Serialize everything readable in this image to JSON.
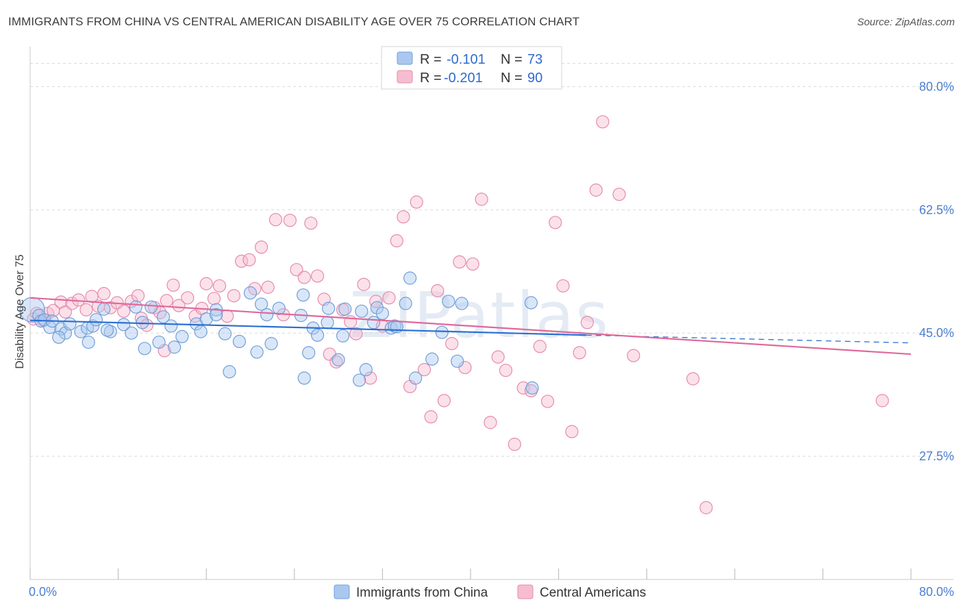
{
  "title": "IMMIGRANTS FROM CHINA VS CENTRAL AMERICAN DISABILITY AGE OVER 75 CORRELATION CHART",
  "source": "Source: ZipAtlas.com",
  "watermark": "ZIPatlas",
  "colors": {
    "china_fill": "#aac8ef",
    "china_stroke": "#6f9fd8",
    "china_line": "#2a6fd1",
    "central_fill": "#f6bdd0",
    "central_stroke": "#e68bab",
    "central_line": "#e0689a",
    "tick_label": "#4a7fcf",
    "grid": "#d9d9d9"
  },
  "legend": {
    "rows": [
      {
        "r_label": "R =",
        "r_value": "-0.101",
        "n_label": "N =",
        "n_value": "73"
      },
      {
        "r_label": "R =",
        "r_value": "-0.201",
        "n_label": "N =",
        "n_value": "90"
      }
    ]
  },
  "chart_data": {
    "type": "scatter",
    "xlabel": "",
    "ylabel": "Disability Age Over 75",
    "xlim": [
      0,
      80
    ],
    "ylim": [
      10,
      85
    ],
    "x_tick_labels": [
      "0.0%",
      "80.0%"
    ],
    "y_ticks": [
      27.5,
      45.0,
      62.5,
      80.0
    ],
    "y_tick_labels": [
      "27.5%",
      "45.0%",
      "62.5%",
      "80.0%"
    ],
    "grid": "horizontal dashed",
    "series": [
      {
        "name": "Immigrants from China",
        "trend": {
          "x": [
            0,
            50.5
          ],
          "y": [
            46.8,
            44.7
          ],
          "dashed_to": [
            80,
            43.6
          ]
        },
        "points": [
          [
            0.2,
            48.3
          ],
          [
            0.8,
            47.5
          ],
          [
            1.0,
            46.7
          ],
          [
            1.3,
            46.9
          ],
          [
            1.8,
            45.8
          ],
          [
            2.0,
            46.7
          ],
          [
            2.8,
            45.6
          ],
          [
            3.2,
            45.0
          ],
          [
            3.6,
            46.3
          ],
          [
            4.6,
            45.2
          ],
          [
            5.2,
            45.7
          ],
          [
            5.7,
            46.0
          ],
          [
            6.0,
            46.9
          ],
          [
            7.3,
            45.2
          ],
          [
            5.3,
            43.7
          ],
          [
            2.6,
            44.4
          ],
          [
            6.7,
            48.4
          ],
          [
            7.0,
            45.4
          ],
          [
            8.5,
            46.2
          ],
          [
            9.6,
            48.7
          ],
          [
            9.2,
            45.0
          ],
          [
            10.2,
            46.5
          ],
          [
            11.0,
            48.7
          ],
          [
            12.1,
            47.3
          ],
          [
            10.4,
            42.8
          ],
          [
            11.7,
            43.7
          ],
          [
            12.8,
            46.0
          ],
          [
            13.1,
            43.0
          ],
          [
            13.8,
            44.5
          ],
          [
            15.1,
            46.3
          ],
          [
            15.5,
            45.2
          ],
          [
            16.0,
            47.0
          ],
          [
            16.9,
            48.3
          ],
          [
            16.9,
            47.6
          ],
          [
            17.7,
            44.9
          ],
          [
            18.1,
            39.5
          ],
          [
            19.0,
            43.8
          ],
          [
            20.0,
            50.7
          ],
          [
            20.6,
            42.3
          ],
          [
            21.0,
            49.1
          ],
          [
            21.5,
            47.6
          ],
          [
            21.9,
            43.5
          ],
          [
            22.6,
            48.5
          ],
          [
            24.6,
            47.5
          ],
          [
            24.8,
            50.4
          ],
          [
            25.3,
            42.2
          ],
          [
            24.9,
            38.6
          ],
          [
            25.7,
            45.7
          ],
          [
            26.1,
            44.7
          ],
          [
            27.1,
            48.5
          ],
          [
            27.0,
            46.5
          ],
          [
            28.0,
            41.2
          ],
          [
            28.4,
            44.6
          ],
          [
            28.6,
            48.4
          ],
          [
            30.1,
            48.1
          ],
          [
            30.5,
            39.8
          ],
          [
            31.5,
            48.6
          ],
          [
            32.0,
            47.8
          ],
          [
            31.2,
            46.5
          ],
          [
            32.8,
            45.7
          ],
          [
            33.1,
            46.0
          ],
          [
            33.3,
            45.9
          ],
          [
            34.1,
            49.2
          ],
          [
            34.5,
            52.8
          ],
          [
            35.0,
            38.6
          ],
          [
            36.5,
            41.3
          ],
          [
            37.4,
            45.1
          ],
          [
            38.0,
            49.5
          ],
          [
            38.8,
            41.0
          ],
          [
            39.2,
            49.2
          ],
          [
            29.9,
            38.3
          ],
          [
            45.6,
            37.2
          ],
          [
            45.5,
            49.3
          ]
        ]
      },
      {
        "name": "Central Americans",
        "trend": {
          "x": [
            0,
            80
          ],
          "y": [
            50.0,
            42.0
          ]
        },
        "points": [
          [
            0.3,
            47.0
          ],
          [
            0.6,
            47.8
          ],
          [
            1.2,
            46.8
          ],
          [
            1.6,
            47.8
          ],
          [
            2.1,
            48.2
          ],
          [
            2.8,
            49.4
          ],
          [
            3.2,
            48.0
          ],
          [
            3.8,
            49.2
          ],
          [
            4.4,
            49.7
          ],
          [
            5.1,
            48.3
          ],
          [
            5.6,
            50.2
          ],
          [
            6.2,
            48.8
          ],
          [
            6.7,
            50.6
          ],
          [
            7.3,
            48.6
          ],
          [
            7.9,
            49.3
          ],
          [
            8.5,
            48.1
          ],
          [
            9.2,
            49.5
          ],
          [
            9.8,
            50.3
          ],
          [
            10.1,
            47.1
          ],
          [
            10.6,
            46.1
          ],
          [
            11.3,
            48.6
          ],
          [
            11.8,
            47.9
          ],
          [
            12.4,
            49.6
          ],
          [
            13.0,
            51.8
          ],
          [
            13.5,
            48.9
          ],
          [
            14.3,
            50.0
          ],
          [
            15.0,
            47.4
          ],
          [
            15.6,
            48.5
          ],
          [
            16.0,
            52.0
          ],
          [
            16.7,
            49.9
          ],
          [
            17.2,
            51.7
          ],
          [
            17.9,
            47.4
          ],
          [
            18.5,
            50.3
          ],
          [
            19.2,
            55.2
          ],
          [
            19.9,
            55.4
          ],
          [
            20.4,
            51.3
          ],
          [
            21.0,
            57.2
          ],
          [
            21.6,
            51.5
          ],
          [
            22.3,
            61.1
          ],
          [
            23.0,
            47.6
          ],
          [
            23.6,
            61.0
          ],
          [
            24.2,
            54.0
          ],
          [
            24.9,
            52.9
          ],
          [
            25.5,
            60.6
          ],
          [
            26.1,
            53.1
          ],
          [
            26.7,
            49.8
          ],
          [
            27.2,
            42.0
          ],
          [
            27.8,
            40.9
          ],
          [
            28.4,
            48.3
          ],
          [
            29.1,
            46.6
          ],
          [
            29.6,
            44.9
          ],
          [
            30.3,
            51.9
          ],
          [
            30.9,
            38.6
          ],
          [
            31.4,
            49.5
          ],
          [
            32.0,
            46.0
          ],
          [
            32.6,
            50.0
          ],
          [
            33.3,
            58.1
          ],
          [
            33.9,
            61.5
          ],
          [
            34.5,
            37.4
          ],
          [
            35.1,
            63.6
          ],
          [
            35.8,
            39.8
          ],
          [
            36.4,
            33.1
          ],
          [
            37.0,
            51.0
          ],
          [
            37.6,
            35.4
          ],
          [
            38.3,
            43.5
          ],
          [
            39.0,
            55.1
          ],
          [
            39.5,
            40.1
          ],
          [
            40.2,
            54.8
          ],
          [
            41.0,
            64.0
          ],
          [
            41.8,
            32.3
          ],
          [
            42.5,
            41.6
          ],
          [
            43.2,
            39.7
          ],
          [
            44.0,
            29.2
          ],
          [
            44.8,
            37.2
          ],
          [
            45.5,
            36.8
          ],
          [
            46.3,
            43.1
          ],
          [
            47.0,
            35.3
          ],
          [
            47.7,
            60.7
          ],
          [
            48.4,
            51.7
          ],
          [
            49.2,
            31.0
          ],
          [
            49.9,
            42.2
          ],
          [
            50.6,
            46.5
          ],
          [
            51.4,
            65.3
          ],
          [
            52.0,
            75.0
          ],
          [
            53.5,
            64.7
          ],
          [
            54.8,
            41.8
          ],
          [
            60.2,
            38.5
          ],
          [
            61.4,
            20.2
          ],
          [
            77.4,
            35.4
          ],
          [
            12.2,
            42.5
          ]
        ]
      }
    ]
  }
}
